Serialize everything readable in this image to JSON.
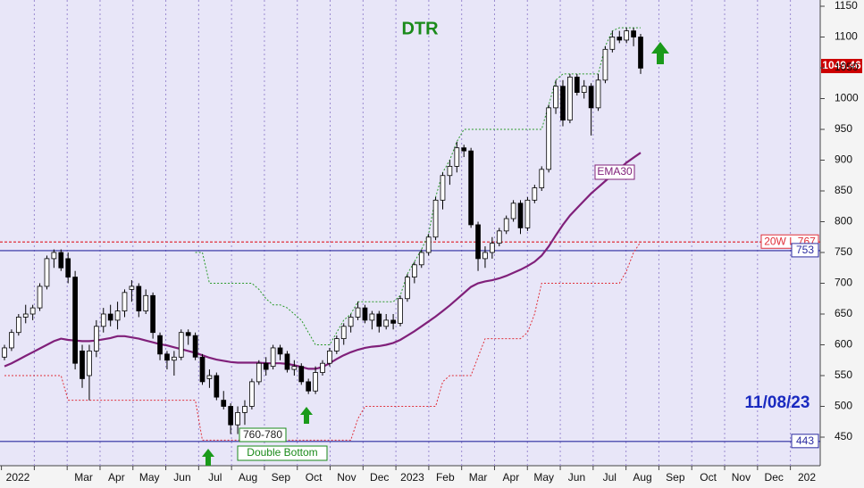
{
  "chart_data": {
    "type": "candlestick",
    "title": "DTR",
    "date_label": "11/08/23",
    "last_price_label": "1049.46",
    "ema_label": "EMA30",
    "range_label": "760-780",
    "pattern_label": "Double Bottom",
    "levels": [
      {
        "name": "20W L 767",
        "value": 767,
        "color": "#e0303a"
      },
      {
        "name": "753",
        "value": 753,
        "color": "#2a2aa0"
      },
      {
        "name": "443",
        "value": 443,
        "color": "#2a2aa0"
      }
    ],
    "months": [
      "2022",
      null,
      "Mar",
      "Apr",
      "May",
      "Jun",
      "Jul",
      "Aug",
      "Sep",
      "Oct",
      "Nov",
      "Dec",
      "2023",
      "Feb",
      "Mar",
      "Apr",
      "May",
      "Jun",
      "Jul",
      "Aug",
      "Sep",
      "Oct",
      "Nov",
      "Dec",
      "202"
    ],
    "ylim": [
      420,
      1160
    ],
    "yticks": [
      450,
      500,
      550,
      600,
      650,
      700,
      750,
      800,
      850,
      900,
      950,
      1000,
      1050,
      1100,
      1150
    ],
    "grid": true,
    "open": [
      580,
      595,
      620,
      645,
      650,
      660,
      695,
      740,
      750,
      740,
      710,
      590,
      550,
      590,
      630,
      650,
      640,
      655,
      690,
      695,
      655,
      680,
      615,
      585,
      575,
      580,
      620,
      615,
      580,
      545,
      550,
      510,
      500,
      470,
      490,
      500,
      540,
      570,
      565,
      595,
      585,
      560,
      565,
      540,
      525,
      555,
      570,
      590,
      610,
      630,
      645,
      660,
      640,
      650,
      630,
      640,
      635,
      675,
      710,
      730,
      750,
      775,
      835,
      875,
      890,
      920,
      915,
      795,
      740,
      750,
      765,
      785,
      805,
      830,
      790,
      835,
      855,
      885,
      985,
      1020,
      965,
      1035,
      1010,
      1020,
      985,
      1030,
      1080,
      1100,
      1095,
      1110,
      1100
    ],
    "high": [
      600,
      625,
      650,
      665,
      665,
      700,
      745,
      755,
      755,
      750,
      720,
      600,
      600,
      640,
      660,
      665,
      670,
      690,
      705,
      700,
      690,
      685,
      620,
      590,
      590,
      625,
      625,
      620,
      585,
      560,
      555,
      525,
      505,
      500,
      510,
      545,
      575,
      580,
      600,
      600,
      590,
      575,
      570,
      545,
      565,
      575,
      595,
      615,
      635,
      650,
      670,
      665,
      655,
      655,
      650,
      650,
      680,
      715,
      735,
      755,
      780,
      840,
      880,
      900,
      930,
      925,
      920,
      800,
      760,
      775,
      790,
      810,
      835,
      835,
      840,
      860,
      890,
      990,
      1030,
      1030,
      1040,
      1040,
      1030,
      1025,
      1040,
      1085,
      1110,
      1110,
      1115,
      1115,
      1105
    ],
    "low": [
      575,
      590,
      615,
      635,
      640,
      655,
      690,
      725,
      720,
      700,
      560,
      530,
      510,
      580,
      620,
      630,
      625,
      645,
      670,
      645,
      650,
      610,
      575,
      560,
      550,
      575,
      600,
      575,
      535,
      530,
      510,
      495,
      455,
      455,
      470,
      495,
      535,
      550,
      560,
      575,
      555,
      550,
      535,
      520,
      520,
      550,
      565,
      585,
      600,
      620,
      640,
      635,
      625,
      620,
      625,
      625,
      630,
      670,
      700,
      725,
      745,
      770,
      820,
      860,
      880,
      905,
      790,
      720,
      725,
      740,
      760,
      780,
      800,
      780,
      785,
      830,
      850,
      880,
      975,
      955,
      960,
      1005,
      1000,
      940,
      980,
      1025,
      1075,
      1090,
      1090,
      1085,
      1040
    ],
    "close": [
      595,
      620,
      645,
      650,
      660,
      695,
      740,
      750,
      725,
      710,
      570,
      545,
      590,
      630,
      650,
      640,
      655,
      685,
      695,
      655,
      680,
      620,
      585,
      575,
      580,
      620,
      615,
      580,
      540,
      550,
      515,
      500,
      470,
      490,
      500,
      540,
      570,
      560,
      595,
      585,
      560,
      565,
      540,
      525,
      555,
      570,
      590,
      610,
      630,
      645,
      660,
      640,
      650,
      630,
      640,
      635,
      675,
      710,
      730,
      750,
      775,
      835,
      875,
      890,
      920,
      915,
      795,
      740,
      750,
      765,
      785,
      805,
      830,
      790,
      835,
      855,
      885,
      985,
      1020,
      965,
      1035,
      1010,
      1020,
      985,
      1030,
      1080,
      1100,
      1095,
      1110,
      1100,
      1049.46
    ],
    "series": [
      {
        "name": "EMA30",
        "color": "#80207a",
        "values": [
          565,
          570,
          576,
          582,
          588,
          594,
          600,
          606,
          610,
          608,
          607,
          606,
          606,
          607,
          609,
          611,
          614,
          614,
          612,
          610,
          607,
          604,
          601,
          599,
          596,
          593,
          590,
          587,
          583,
          579,
          576,
          574,
          572,
          571,
          571,
          571,
          571,
          570,
          570,
          570,
          569,
          567,
          564,
          561,
          561,
          564,
          570,
          577,
          583,
          588,
          592,
          595,
          597,
          598,
          600,
          603,
          608,
          615,
          622,
          630,
          638,
          646,
          655,
          664,
          674,
          684,
          694,
          700,
          703,
          705,
          708,
          712,
          717,
          722,
          728,
          735,
          745,
          760,
          778,
          795,
          810,
          822,
          834,
          846,
          856,
          866,
          876,
          886,
          896,
          904,
          912
        ]
      },
      {
        "name": "upper",
        "color": "#2a9a2a",
        "values": [
          null,
          null,
          null,
          null,
          null,
          null,
          null,
          null,
          null,
          null,
          null,
          null,
          null,
          null,
          null,
          null,
          null,
          null,
          null,
          null,
          null,
          null,
          null,
          null,
          null,
          null,
          null,
          750,
          750,
          700,
          700,
          700,
          700,
          700,
          700,
          700,
          690,
          675,
          665,
          665,
          660,
          650,
          640,
          620,
          600,
          600,
          600,
          620,
          640,
          650,
          670,
          670,
          670,
          670,
          670,
          670,
          680,
          715,
          735,
          755,
          780,
          840,
          880,
          900,
          930,
          950,
          950,
          950,
          950,
          950,
          950,
          950,
          950,
          950,
          950,
          950,
          950,
          990,
          1030,
          1040,
          1040,
          1040,
          1040,
          1040,
          1040,
          1085,
          1110,
          1115,
          1115,
          1115,
          1115
        ]
      },
      {
        "name": "lower",
        "color": "#e0303a",
        "values": [
          550,
          550,
          550,
          550,
          550,
          550,
          550,
          550,
          550,
          510,
          510,
          510,
          510,
          510,
          510,
          510,
          510,
          510,
          510,
          510,
          510,
          510,
          510,
          510,
          510,
          510,
          510,
          510,
          445,
          445,
          445,
          445,
          445,
          445,
          445,
          445,
          445,
          445,
          445,
          445,
          445,
          445,
          445,
          445,
          445,
          445,
          445,
          445,
          445,
          445,
          480,
          500,
          500,
          500,
          500,
          500,
          500,
          500,
          500,
          500,
          500,
          500,
          540,
          550,
          550,
          550,
          550,
          580,
          610,
          610,
          610,
          610,
          610,
          610,
          620,
          650,
          700,
          700,
          700,
          700,
          700,
          700,
          700,
          700,
          700,
          700,
          700,
          700,
          720,
          750,
          767
        ]
      }
    ]
  }
}
